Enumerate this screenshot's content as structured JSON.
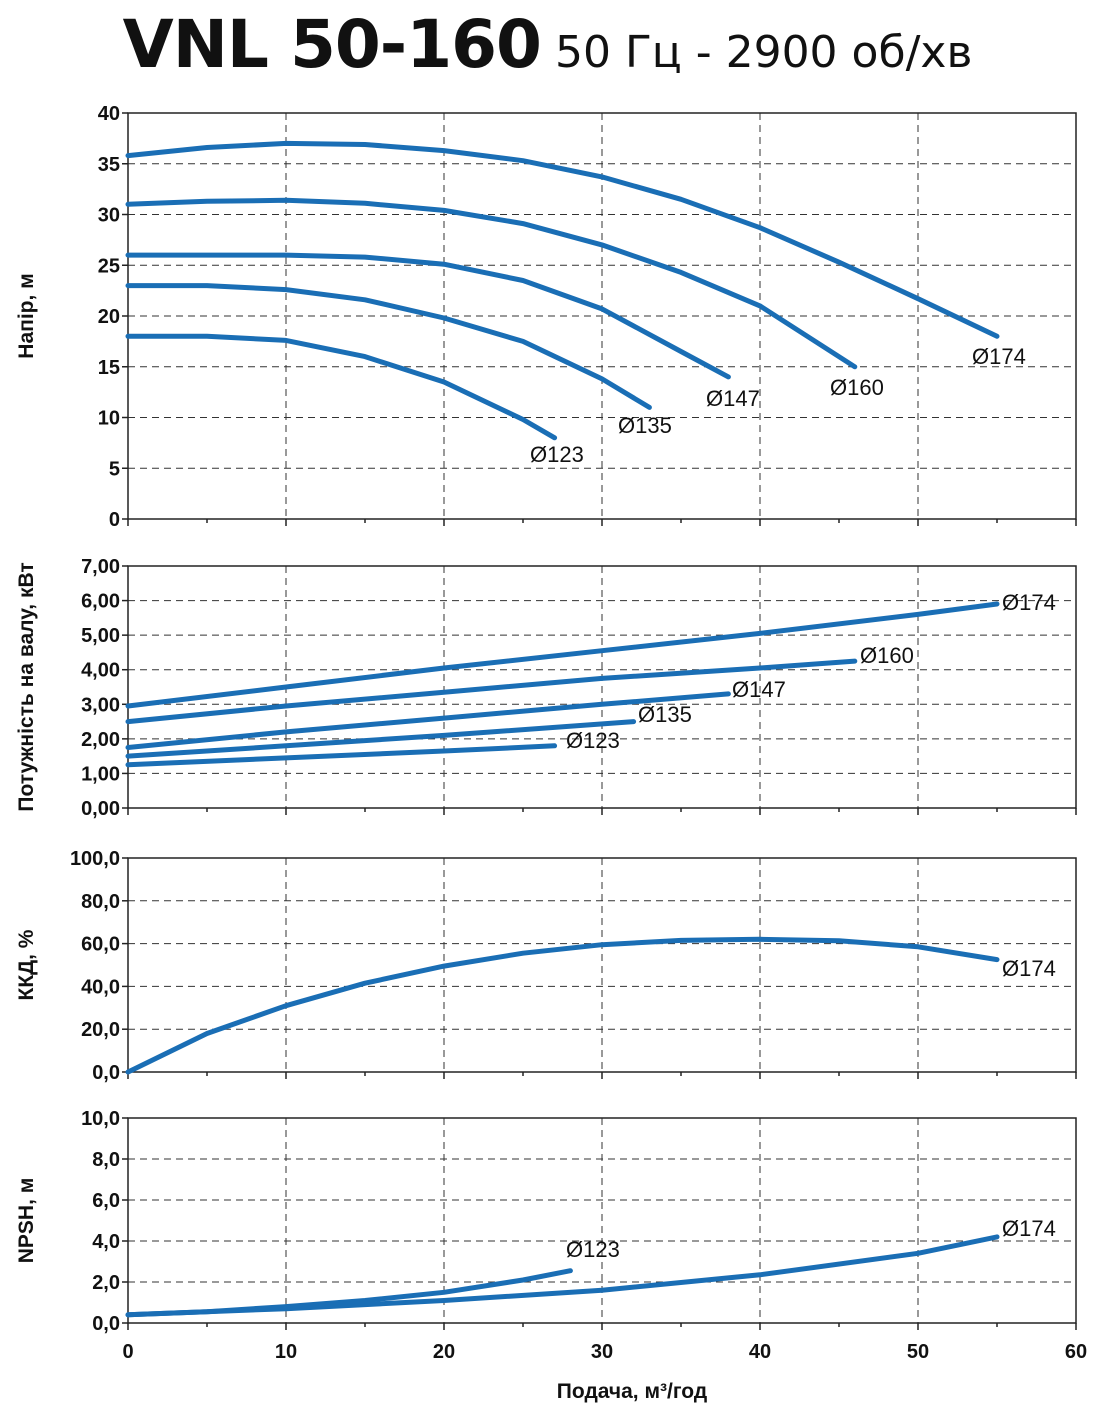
{
  "title": {
    "main": "VNL 50-160",
    "sub": "50 Гц - 2900 об/хв"
  },
  "colors": {
    "curve": "#1a6eb5",
    "grid": "#333333",
    "axis": "#222222"
  },
  "chart_data": [
    {
      "id": "head",
      "type": "line",
      "ylabel": "Напір, м",
      "ylim": [
        0,
        40
      ],
      "yticks": [
        "0",
        "5",
        "10",
        "15",
        "20",
        "25",
        "30",
        "35",
        "40"
      ],
      "xlim": [
        0,
        60
      ],
      "grid": true,
      "series": [
        {
          "name": "Ø123",
          "x": [
            0,
            5,
            10,
            15,
            20,
            25,
            27
          ],
          "y": [
            18,
            18,
            17.6,
            16,
            13.5,
            9.8,
            8
          ]
        },
        {
          "name": "Ø135",
          "x": [
            0,
            5,
            10,
            15,
            20,
            25,
            30,
            33
          ],
          "y": [
            23,
            23,
            22.6,
            21.6,
            19.8,
            17.5,
            13.8,
            11
          ]
        },
        {
          "name": "Ø147",
          "x": [
            0,
            5,
            10,
            15,
            20,
            25,
            30,
            35,
            38
          ],
          "y": [
            26,
            26,
            26,
            25.8,
            25.1,
            23.5,
            20.7,
            16.5,
            14
          ]
        },
        {
          "name": "Ø160",
          "x": [
            0,
            5,
            10,
            15,
            20,
            25,
            30,
            35,
            40,
            46
          ],
          "y": [
            31,
            31.3,
            31.4,
            31.1,
            30.4,
            29.1,
            27,
            24.3,
            21,
            15
          ]
        },
        {
          "name": "Ø174",
          "x": [
            0,
            5,
            10,
            15,
            20,
            25,
            30,
            35,
            40,
            45,
            50,
            55
          ],
          "y": [
            35.8,
            36.6,
            37,
            36.9,
            36.3,
            35.3,
            33.7,
            31.5,
            28.7,
            25.3,
            21.7,
            18
          ]
        }
      ]
    },
    {
      "id": "power",
      "type": "line",
      "ylabel": "Потужність на валу, кВт",
      "ylim": [
        0,
        7
      ],
      "yticks": [
        "0,00",
        "1,00",
        "2,00",
        "3,00",
        "4,00",
        "5,00",
        "6,00",
        "7,00"
      ],
      "xlim": [
        0,
        60
      ],
      "grid": true,
      "series": [
        {
          "name": "Ø123",
          "x": [
            0,
            10,
            20,
            27
          ],
          "y": [
            1.25,
            1.45,
            1.65,
            1.8
          ]
        },
        {
          "name": "Ø135",
          "x": [
            0,
            10,
            20,
            32
          ],
          "y": [
            1.5,
            1.8,
            2.1,
            2.5
          ]
        },
        {
          "name": "Ø147",
          "x": [
            0,
            10,
            20,
            30,
            38
          ],
          "y": [
            1.75,
            2.2,
            2.6,
            3,
            3.3
          ]
        },
        {
          "name": "Ø160",
          "x": [
            0,
            10,
            20,
            30,
            40,
            46
          ],
          "y": [
            2.5,
            2.95,
            3.35,
            3.75,
            4.05,
            4.25
          ]
        },
        {
          "name": "Ø174",
          "x": [
            0,
            10,
            20,
            30,
            40,
            50,
            55
          ],
          "y": [
            2.95,
            3.5,
            4.05,
            4.55,
            5.05,
            5.6,
            5.9
          ]
        }
      ]
    },
    {
      "id": "efficiency",
      "type": "line",
      "ylabel": "ККД, %",
      "ylim": [
        0,
        100
      ],
      "yticks": [
        "0,0",
        "20,0",
        "40,0",
        "60,0",
        "80,0",
        "100,0"
      ],
      "xlim": [
        0,
        60
      ],
      "grid": true,
      "series": [
        {
          "name": "Ø174",
          "x": [
            0,
            5,
            10,
            15,
            20,
            25,
            30,
            35,
            40,
            45,
            50,
            55
          ],
          "y": [
            0,
            18,
            31,
            41.5,
            49.5,
            55.5,
            59.5,
            61.5,
            62,
            61.3,
            58.5,
            52.5
          ]
        }
      ]
    },
    {
      "id": "npsh",
      "type": "line",
      "ylabel": "NPSH, м",
      "ylim": [
        0,
        10
      ],
      "yticks": [
        "0,0",
        "2,0",
        "4,0",
        "6,0",
        "8,0",
        "10,0"
      ],
      "xlim": [
        0,
        60
      ],
      "xticks": [
        "0",
        "10",
        "20",
        "30",
        "40",
        "50",
        "60"
      ],
      "xlabel": "Подача, м³/год",
      "grid": true,
      "series": [
        {
          "name": "Ø123",
          "x": [
            0,
            5,
            10,
            15,
            20,
            25,
            28
          ],
          "y": [
            0.4,
            0.55,
            0.8,
            1.1,
            1.5,
            2.1,
            2.55
          ]
        },
        {
          "name": "Ø174",
          "x": [
            0,
            10,
            20,
            30,
            40,
            50,
            55
          ],
          "y": [
            0.4,
            0.7,
            1.1,
            1.6,
            2.35,
            3.4,
            4.2
          ]
        }
      ]
    }
  ]
}
